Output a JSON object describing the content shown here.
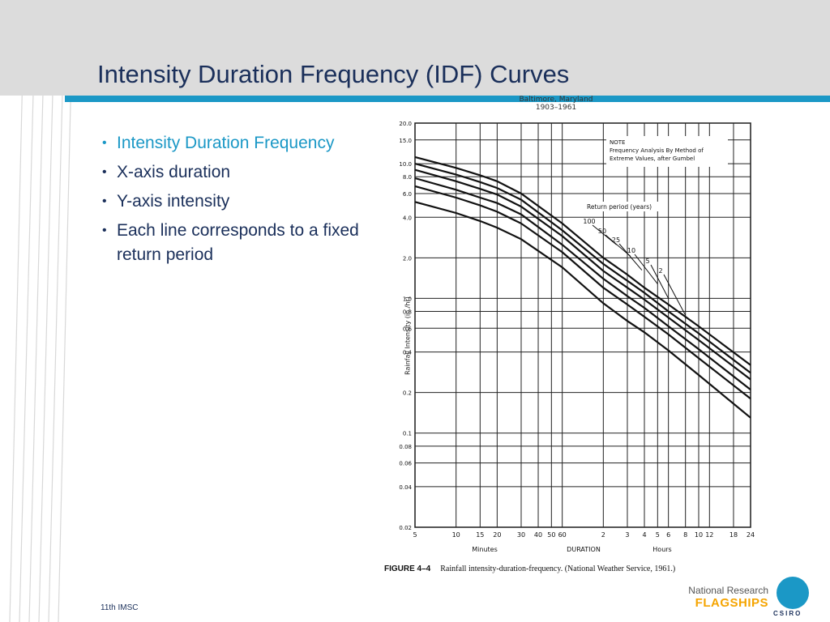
{
  "slide": {
    "title": "Intensity Duration Frequency (IDF) Curves",
    "footer": "11th IMSC",
    "logo_line1": "National Research",
    "logo_line2": "FLAGSHIPS",
    "logo_mark": "CSIRO",
    "accent_color": "#1b98c6",
    "title_color": "#1a2f5a"
  },
  "bullets": [
    "Intensity Duration Frequency",
    "X-axis duration",
    "Y-axis intensity",
    "Each line corresponds to a fixed   return period"
  ],
  "figure": {
    "source_line1": "Baltimore, Maryland",
    "source_line2": "1903–1961",
    "caption_label": "FIGURE 4–4",
    "caption_text": "Rainfall intensity-duration-frequency. (National Weather Service, 1961.)",
    "note_title": "NOTE",
    "note_line1": "Frequency Analysis By Method of",
    "note_line2": "Extreme Values, after Gumbel",
    "legend_title": "Return period (years)",
    "minutes_label": "Minutes",
    "duration_label": "DURATION",
    "hours_label": "Hours"
  },
  "chart_data": {
    "type": "line",
    "ylabel": "Rainfall Intensity (in./hr)",
    "xlabel": "DURATION",
    "x_scale": "log",
    "y_scale": "log",
    "x_ticks": [
      {
        "label": "5",
        "minutes": 5
      },
      {
        "label": "10",
        "minutes": 10
      },
      {
        "label": "15",
        "minutes": 15
      },
      {
        "label": "20",
        "minutes": 20
      },
      {
        "label": "30",
        "minutes": 30
      },
      {
        "label": "40",
        "minutes": 40
      },
      {
        "label": "50",
        "minutes": 50
      },
      {
        "label": "60",
        "minutes": 60
      },
      {
        "label": "2",
        "minutes": 120
      },
      {
        "label": "3",
        "minutes": 180
      },
      {
        "label": "4",
        "minutes": 240
      },
      {
        "label": "5",
        "minutes": 300
      },
      {
        "label": "6",
        "minutes": 360
      },
      {
        "label": "8",
        "minutes": 480
      },
      {
        "label": "10",
        "minutes": 600
      },
      {
        "label": "12",
        "minutes": 720
      },
      {
        "label": "18",
        "minutes": 1080
      },
      {
        "label": "24",
        "minutes": 1440
      }
    ],
    "y_ticks": [
      {
        "label": "20.0",
        "value": 20
      },
      {
        "label": "15.0",
        "value": 15
      },
      {
        "label": "10.0",
        "value": 10
      },
      {
        "label": "8.0",
        "value": 8
      },
      {
        "label": "6.0",
        "value": 6
      },
      {
        "label": "4.0",
        "value": 4
      },
      {
        "label": "2.0",
        "value": 2
      },
      {
        "label": "1.0",
        "value": 1
      },
      {
        "label": "0.8",
        "value": 0.8
      },
      {
        "label": "0.6",
        "value": 0.6
      },
      {
        "label": "0.4",
        "value": 0.4
      },
      {
        "label": "0.2",
        "value": 0.2
      },
      {
        "label": "0.1",
        "value": 0.1
      },
      {
        "label": "0.08",
        "value": 0.08
      },
      {
        "label": "0.06",
        "value": 0.06
      },
      {
        "label": "0.04",
        "value": 0.04
      },
      {
        "label": "0.02",
        "value": 0.02
      }
    ],
    "xlim": [
      5,
      1440
    ],
    "ylim": [
      0.02,
      20
    ],
    "grid": true,
    "series": [
      {
        "name": "100",
        "x": [
          5,
          10,
          15,
          20,
          30,
          60,
          120,
          180,
          240,
          360,
          600,
          1440
        ],
        "y": [
          11.2,
          9.3,
          8.2,
          7.4,
          6.0,
          3.6,
          2.0,
          1.5,
          1.2,
          0.9,
          0.62,
          0.32
        ]
      },
      {
        "name": "50",
        "x": [
          5,
          10,
          15,
          20,
          30,
          60,
          120,
          180,
          240,
          360,
          600,
          1440
        ],
        "y": [
          10.0,
          8.3,
          7.3,
          6.6,
          5.4,
          3.2,
          1.8,
          1.35,
          1.1,
          0.8,
          0.55,
          0.28
        ]
      },
      {
        "name": "25",
        "x": [
          5,
          10,
          15,
          20,
          30,
          60,
          120,
          180,
          240,
          360,
          600,
          1440
        ],
        "y": [
          9.0,
          7.4,
          6.5,
          5.9,
          4.8,
          2.9,
          1.6,
          1.2,
          0.98,
          0.72,
          0.49,
          0.25
        ]
      },
      {
        "name": "10",
        "x": [
          5,
          10,
          15,
          20,
          30,
          60,
          120,
          180,
          240,
          360,
          600,
          1440
        ],
        "y": [
          7.8,
          6.4,
          5.6,
          5.1,
          4.2,
          2.5,
          1.4,
          1.04,
          0.85,
          0.62,
          0.42,
          0.21
        ]
      },
      {
        "name": "5",
        "x": [
          5,
          10,
          15,
          20,
          30,
          60,
          120,
          180,
          240,
          360,
          600,
          1440
        ],
        "y": [
          6.8,
          5.6,
          4.9,
          4.4,
          3.6,
          2.2,
          1.2,
          0.9,
          0.73,
          0.54,
          0.36,
          0.18
        ]
      },
      {
        "name": "2",
        "x": [
          5,
          10,
          15,
          20,
          30,
          60,
          120,
          180,
          240,
          360,
          600,
          1440
        ],
        "y": [
          5.2,
          4.3,
          3.75,
          3.35,
          2.75,
          1.7,
          0.92,
          0.68,
          0.56,
          0.41,
          0.27,
          0.13
        ]
      }
    ],
    "legend_arrows": [
      {
        "label": "100",
        "x": 150,
        "y": 2.5
      },
      {
        "label": "50",
        "x": 190,
        "y": 2.05
      },
      {
        "label": "25",
        "x": 230,
        "y": 1.62
      },
      {
        "label": "10",
        "x": 300,
        "y": 1.28
      },
      {
        "label": "5",
        "x": 360,
        "y": 1.0
      },
      {
        "label": "2",
        "x": 480,
        "y": 0.75
      }
    ]
  }
}
